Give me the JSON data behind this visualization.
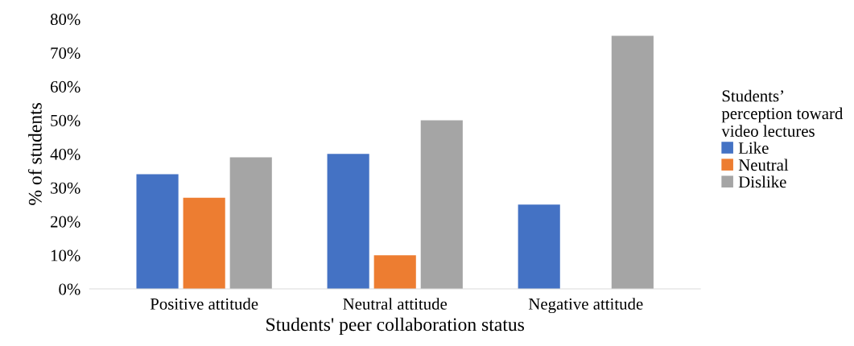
{
  "chart_data": {
    "type": "bar",
    "xlabel": "Students' peer collaboration status",
    "ylabel": "% of students",
    "legend_title": "Students’\nperception toward\nvideo lectures",
    "categories": [
      "Positive attitude",
      "Neutral attitude",
      "Negative attitude"
    ],
    "series": [
      {
        "name": "Like",
        "color": "#4472c4",
        "values": [
          34,
          40,
          25
        ]
      },
      {
        "name": "Neutral",
        "color": "#ed7d31",
        "values": [
          27,
          10,
          0
        ]
      },
      {
        "name": "Dislike",
        "color": "#a5a5a5",
        "values": [
          39,
          50,
          75
        ]
      }
    ],
    "ylim": [
      0,
      80
    ],
    "yticks": [
      {
        "value": 0,
        "label": "0%"
      },
      {
        "value": 10,
        "label": "10%"
      },
      {
        "value": 20,
        "label": "20%"
      },
      {
        "value": 30,
        "label": "30%"
      },
      {
        "value": 40,
        "label": "40%"
      },
      {
        "value": 50,
        "label": "50%"
      },
      {
        "value": 60,
        "label": "60%"
      },
      {
        "value": 70,
        "label": "70%"
      },
      {
        "value": 80,
        "label": "80%"
      }
    ],
    "grid": false,
    "legend": "right"
  }
}
